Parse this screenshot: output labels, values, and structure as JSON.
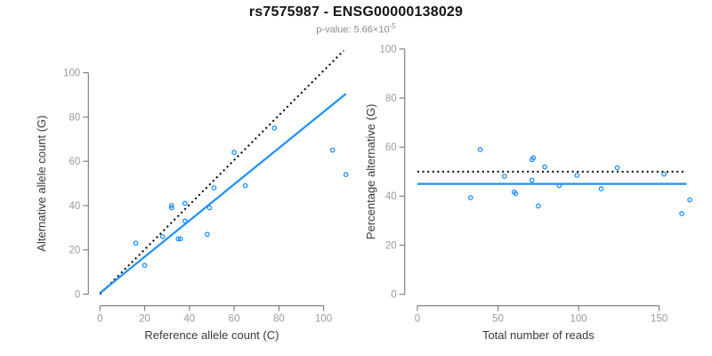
{
  "header": {
    "title": "rs7575987 - ENSG00000138029",
    "pvalue_prefix": "p-value: 5.66×10",
    "pvalue_exponent": "-5"
  },
  "colors": {
    "accent_blue": "#1E90FF",
    "dotted_line": "#000000",
    "axis_line": "#808080",
    "tick_label": "#9b9b9b",
    "axis_title": "#3a3a3a",
    "subtitle_gray": "#8c8c8c"
  },
  "chart_data": [
    {
      "type": "scatter",
      "panel": "left",
      "xlabel": "Reference allele count (C)",
      "ylabel": "Alternative allele count (G)",
      "x_ticks": [
        0,
        20,
        40,
        60,
        80,
        100
      ],
      "y_ticks": [
        0,
        20,
        40,
        60,
        80,
        100
      ],
      "xlim": [
        0,
        110
      ],
      "ylim": [
        0,
        110
      ],
      "grid": false,
      "points": [
        [
          16,
          23
        ],
        [
          20,
          13
        ],
        [
          28,
          26
        ],
        [
          32,
          39
        ],
        [
          32,
          40
        ],
        [
          35,
          25
        ],
        [
          36,
          25
        ],
        [
          38,
          33
        ],
        [
          38,
          41
        ],
        [
          48,
          27
        ],
        [
          49,
          39
        ],
        [
          51,
          48
        ],
        [
          60,
          64
        ],
        [
          65,
          49
        ],
        [
          78,
          75
        ],
        [
          104,
          65
        ],
        [
          110,
          54
        ]
      ],
      "lines": [
        {
          "name": "identity-line",
          "style": "dotted",
          "color": "#000000",
          "x1": 0,
          "y1": 0,
          "x2": 109,
          "y2": 110
        },
        {
          "name": "fit-line",
          "style": "solid",
          "color": "#1E90FF",
          "x1": 0,
          "y1": 0.5,
          "x2": 110,
          "y2": 90.5
        }
      ]
    },
    {
      "type": "scatter",
      "panel": "right",
      "xlabel": "Total number of reads",
      "ylabel": "Percentage alternative (G)",
      "x_ticks": [
        0,
        50,
        100,
        150
      ],
      "y_ticks": [
        0,
        20,
        40,
        60,
        80,
        100
      ],
      "xlim": [
        0,
        170
      ],
      "ylim": [
        0,
        100
      ],
      "grid": false,
      "points": [
        [
          39,
          59.0
        ],
        [
          33,
          39.4
        ],
        [
          54,
          48.1
        ],
        [
          71,
          54.9
        ],
        [
          72,
          55.6
        ],
        [
          60,
          41.7
        ],
        [
          61,
          41.0
        ],
        [
          71,
          46.5
        ],
        [
          79,
          51.9
        ],
        [
          75,
          36.0
        ],
        [
          88,
          44.3
        ],
        [
          99,
          48.5
        ],
        [
          124,
          51.6
        ],
        [
          114,
          43.0
        ],
        [
          153,
          49.0
        ],
        [
          169,
          38.5
        ],
        [
          164,
          32.9
        ]
      ],
      "lines": [
        {
          "name": "expected-ratio-line",
          "style": "dotted",
          "color": "#000000",
          "x1": 0,
          "y1": 50,
          "x2": 167,
          "y2": 50
        },
        {
          "name": "observed-ratio-line",
          "style": "solid",
          "color": "#1E90FF",
          "x1": 0,
          "y1": 45,
          "x2": 167,
          "y2": 45
        }
      ]
    }
  ]
}
